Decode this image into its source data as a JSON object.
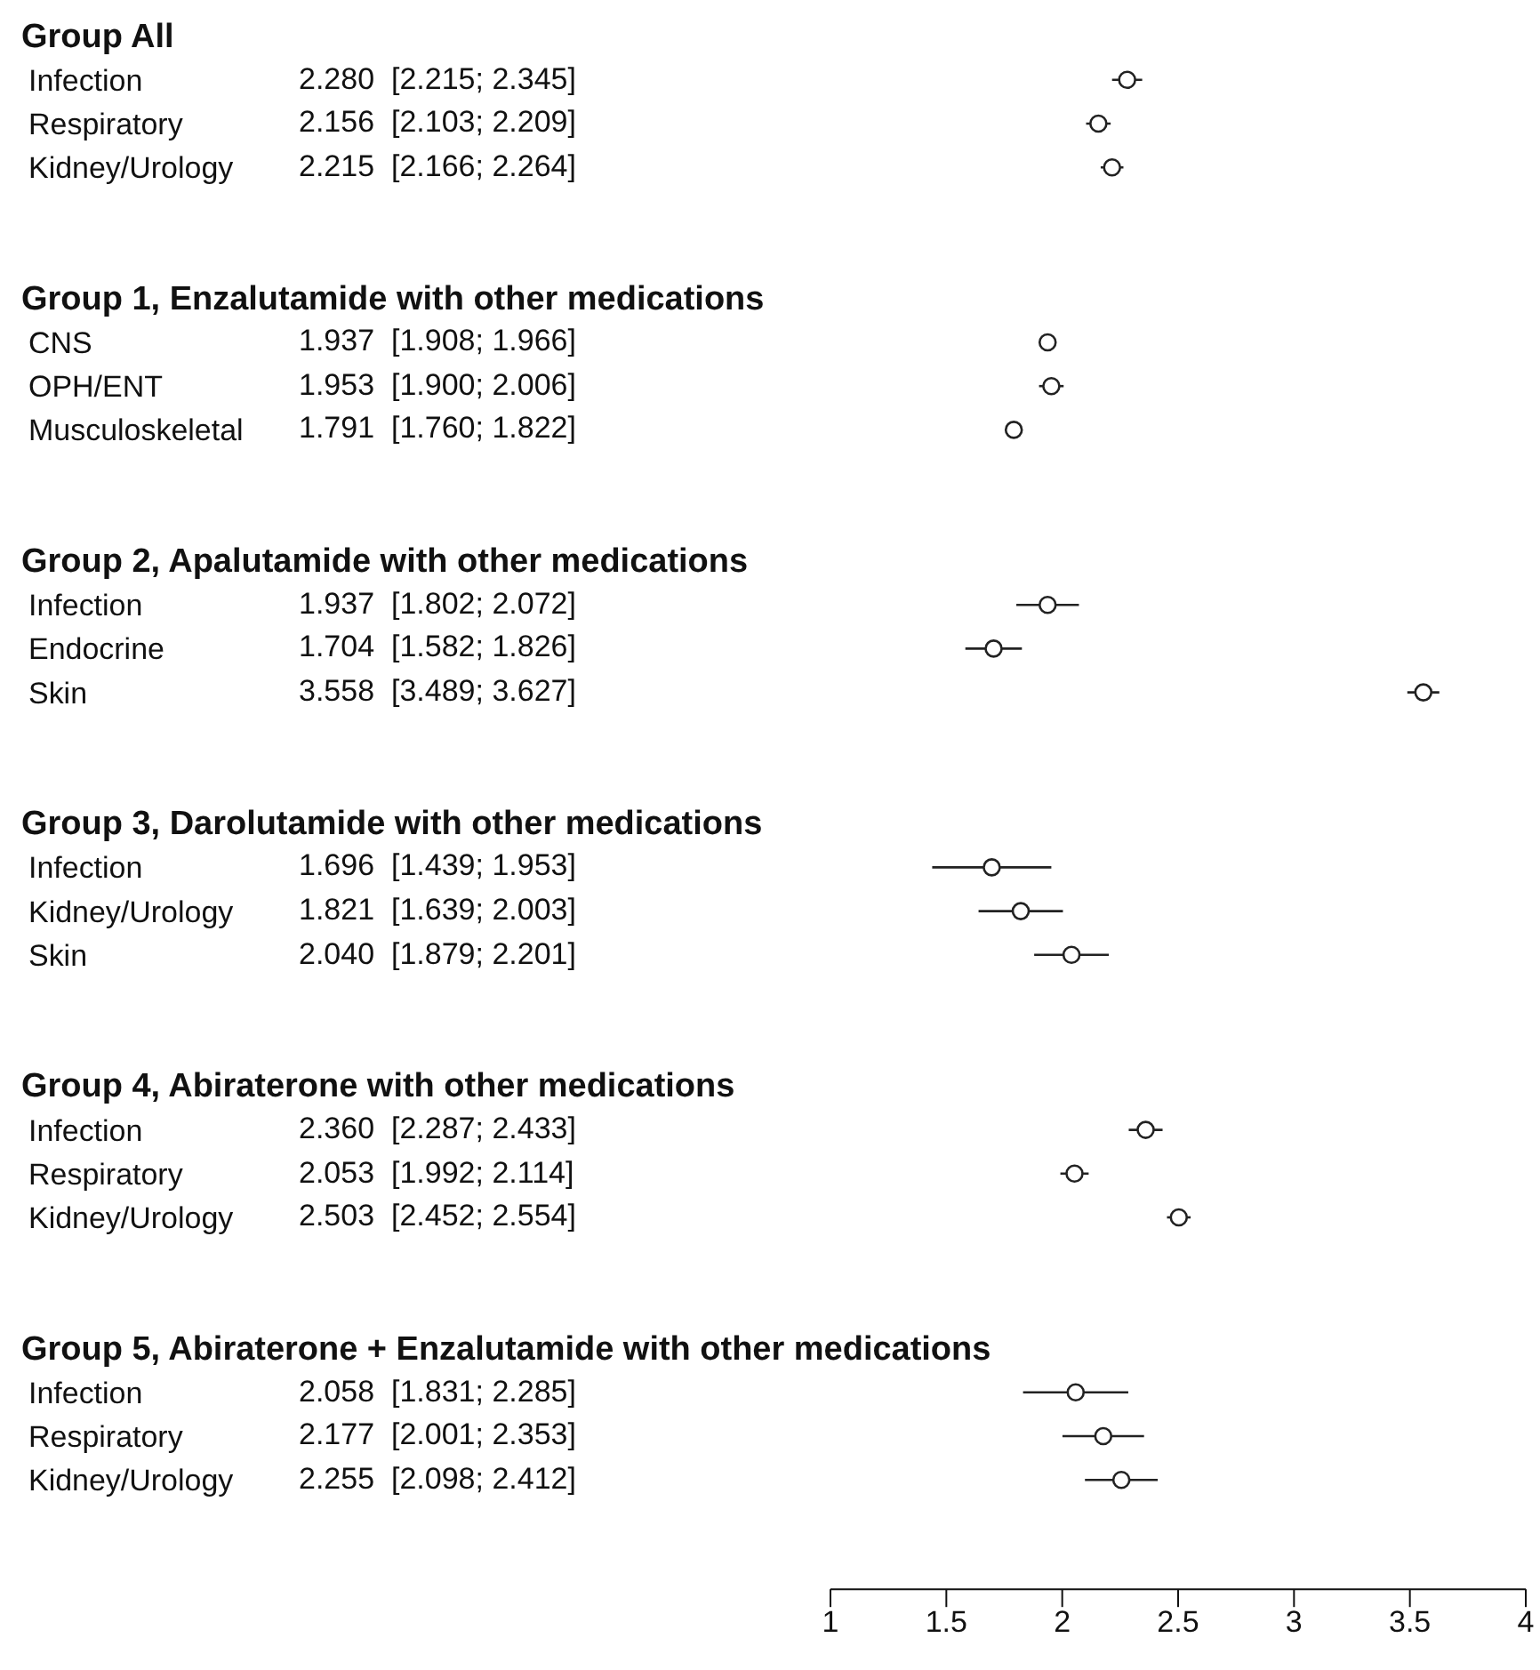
{
  "chart_data": {
    "type": "scatter",
    "orientation": "horizontal",
    "categories": [
      "Group All",
      "Infection",
      "Respiratory",
      "Kidney/Urology",
      null,
      null,
      "Group 1, Enzalutamide with other medications",
      "CNS",
      "OPH/ENT",
      "Musculoskeletal",
      null,
      null,
      "Group 2, Apalutamide with other medications",
      "Infection",
      "Endocrine",
      "Skin",
      null,
      null,
      "Group 3, Darolutamide with other medications",
      "Infection",
      "Kidney/Urology",
      "Skin",
      null,
      null,
      "Group 4, Abiraterone with other medications",
      "Infection",
      "Respiratory",
      "Kidney/Urology",
      null,
      null,
      "Group 5, Abiraterone + Enzalutamide with other medications",
      "Infection",
      "Respiratory",
      "Kidney/Urology",
      null,
      null
    ],
    "values": [
      null,
      2.28,
      2.156,
      2.215,
      null,
      null,
      null,
      1.937,
      1.953,
      1.791,
      null,
      null,
      null,
      1.937,
      1.704,
      3.558,
      null,
      null,
      null,
      1.696,
      1.821,
      2.04,
      null,
      null,
      null,
      2.36,
      2.053,
      2.503,
      null,
      null,
      null,
      2.058,
      2.177,
      2.255,
      null,
      null
    ],
    "errors": [
      null,
      [
        2.215,
        2.345
      ],
      [
        2.103,
        2.209
      ],
      [
        2.166,
        2.264
      ],
      null,
      null,
      null,
      [
        1.908,
        1.966
      ],
      [
        1.9,
        2.006
      ],
      [
        1.76,
        1.822
      ],
      null,
      null,
      null,
      [
        1.802,
        2.072
      ],
      [
        1.582,
        1.826
      ],
      [
        3.489,
        3.627
      ],
      null,
      null,
      null,
      [
        1.439,
        1.953
      ],
      [
        1.639,
        2.003
      ],
      [
        1.879,
        2.201
      ],
      null,
      null,
      null,
      [
        2.287,
        2.433
      ],
      [
        1.992,
        2.114
      ],
      [
        2.452,
        2.554
      ],
      null,
      null,
      null,
      [
        1.831,
        2.285
      ],
      [
        2.001,
        2.353
      ],
      [
        2.098,
        2.412
      ],
      null,
      null
    ],
    "value_labels": [
      null,
      "2.280  [2.215; 2.345]",
      "2.156  [2.103; 2.209]",
      "2.215  [2.166; 2.264]",
      null,
      null,
      null,
      "1.937  [1.908; 1.966]",
      "1.953  [1.900; 2.006]",
      "1.791  [1.760; 1.822]",
      null,
      null,
      null,
      "1.937  [1.802; 2.072]",
      "1.704  [1.582; 1.826]",
      "3.558  [3.489; 3.627]",
      null,
      null,
      null,
      "1.696  [1.439; 1.953]",
      "1.821  [1.639; 2.003]",
      "2.040  [1.879; 2.201]",
      null,
      null,
      null,
      "2.360  [2.287; 2.433]",
      "2.053  [1.992; 2.114]",
      "2.503  [2.452; 2.554]",
      null,
      null,
      null,
      "2.058  [1.831; 2.285]",
      "2.177  [2.001; 2.353]",
      "2.255  [2.098; 2.412]",
      null,
      null
    ],
    "color": "#222222",
    "marker": "circle",
    "xlim": [
      1,
      4
    ],
    "xticks": [
      1,
      1.5,
      2,
      2.5,
      3,
      3.5,
      4
    ]
  }
}
